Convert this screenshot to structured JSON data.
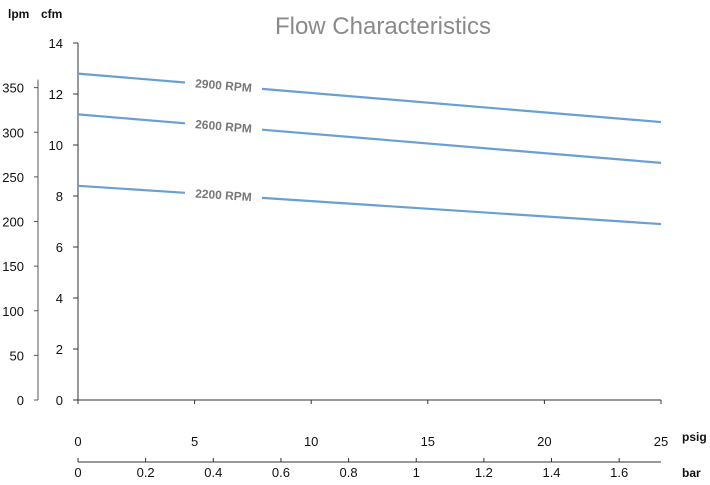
{
  "chart_data": {
    "type": "line",
    "title": "Flow Characteristics",
    "axes": {
      "y_primary_unit": "cfm",
      "y_secondary_unit": "lpm",
      "x_primary_unit": "psig",
      "x_secondary_unit": "bar",
      "x_range_psig": [
        0,
        25
      ],
      "y_range_cfm": [
        0,
        14
      ],
      "y_range_lpm": [
        0,
        400
      ],
      "cfm_ticks": [
        "0",
        "2",
        "4",
        "6",
        "8",
        "10",
        "12",
        "14"
      ],
      "lpm_ticks": [
        "0",
        "50",
        "100",
        "150",
        "200",
        "250",
        "300",
        "350"
      ],
      "psig_ticks": [
        "0",
        "5",
        "10",
        "15",
        "20",
        "25"
      ],
      "bar_ticks": [
        "0",
        "0.2",
        "0.4",
        "0.6",
        "0.8",
        "1",
        "1.2",
        "1.4",
        "1.6"
      ],
      "grid": false
    },
    "series": [
      {
        "name": "2900 RPM",
        "x": [
          0,
          25
        ],
        "y": [
          12.8,
          10.9
        ]
      },
      {
        "name": "2600 RPM",
        "x": [
          0,
          25
        ],
        "y": [
          11.2,
          9.3
        ]
      },
      {
        "name": "2200 RPM",
        "x": [
          0,
          25
        ],
        "y": [
          8.4,
          6.9
        ]
      }
    ],
    "line_color": "#6a9fd4"
  }
}
